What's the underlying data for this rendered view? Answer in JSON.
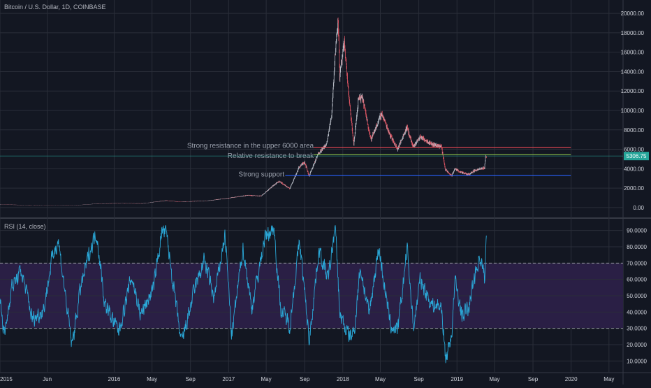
{
  "header": {
    "symbol_title": "Bitcoin / U.S. Dollar, 1D, COINBASE"
  },
  "rsi_panel": {
    "title": "RSI (14, close)"
  },
  "colors": {
    "background": "#131722",
    "grid": "#2a2e39",
    "axis_text": "#d1d4dc",
    "candle_up": "#b7bcc6",
    "candle_down": "#e05563",
    "resistance_upper": "#d64550",
    "resistance_relative": "#8bc34a",
    "support": "#2962ff",
    "rsi_line": "#2aa8d8",
    "rsi_band": "#2a1f45",
    "price_tag": "#26a69a",
    "current_price_line": "#26a69a"
  },
  "chart_data": [
    {
      "type": "candlestick",
      "title": "Bitcoin / U.S. Dollar, 1D, COINBASE",
      "x_range": [
        "2015-01-01",
        "2020-06-15"
      ],
      "y_range": [
        -800,
        20800
      ],
      "y_ticks": [
        "0.00",
        "2000.00",
        "4000.00",
        "6000.00",
        "8000.00",
        "10000.00",
        "12000.00",
        "14000.00",
        "16000.00",
        "18000.00",
        "20000.00"
      ],
      "y_tick_values": [
        0,
        2000,
        4000,
        6000,
        8000,
        10000,
        12000,
        14000,
        16000,
        18000,
        20000
      ],
      "current_price": 5306.75,
      "current_price_label": "5306.75",
      "price_path": [
        [
          "2015-01-01",
          320
        ],
        [
          "2015-03-01",
          270
        ],
        [
          "2015-06-01",
          230
        ],
        [
          "2015-09-01",
          235
        ],
        [
          "2015-11-05",
          390
        ],
        [
          "2016-01-01",
          430
        ],
        [
          "2016-04-01",
          420
        ],
        [
          "2016-06-15",
          720
        ],
        [
          "2016-08-01",
          580
        ],
        [
          "2016-11-01",
          720
        ],
        [
          "2017-01-01",
          980
        ],
        [
          "2017-03-01",
          1250
        ],
        [
          "2017-04-15",
          1200
        ],
        [
          "2017-05-25",
          2300
        ],
        [
          "2017-06-12",
          2700
        ],
        [
          "2017-07-15",
          1950
        ],
        [
          "2017-08-15",
          4200
        ],
        [
          "2017-09-01",
          4700
        ],
        [
          "2017-09-15",
          3250
        ],
        [
          "2017-10-15",
          5600
        ],
        [
          "2017-11-10",
          6500
        ],
        [
          "2017-11-26",
          9500
        ],
        [
          "2017-12-07",
          15500
        ],
        [
          "2017-12-17",
          19650
        ],
        [
          "2017-12-22",
          13500
        ],
        [
          "2018-01-06",
          17000
        ],
        [
          "2018-01-20",
          11500
        ],
        [
          "2018-02-05",
          6500
        ],
        [
          "2018-02-20",
          11200
        ],
        [
          "2018-03-05",
          11300
        ],
        [
          "2018-04-01",
          7000
        ],
        [
          "2018-05-05",
          9700
        ],
        [
          "2018-06-01",
          7500
        ],
        [
          "2018-06-25",
          6000
        ],
        [
          "2018-07-25",
          8300
        ],
        [
          "2018-08-14",
          6200
        ],
        [
          "2018-09-05",
          7300
        ],
        [
          "2018-10-15",
          6500
        ],
        [
          "2018-11-12",
          6300
        ],
        [
          "2018-11-25",
          3900
        ],
        [
          "2018-12-15",
          3250
        ],
        [
          "2018-12-25",
          4000
        ],
        [
          "2019-01-15",
          3600
        ],
        [
          "2019-02-07",
          3400
        ],
        [
          "2019-02-25",
          3800
        ],
        [
          "2019-03-30",
          4100
        ],
        [
          "2019-04-02",
          5200
        ],
        [
          "2019-04-05",
          5306.75
        ]
      ],
      "levels": [
        {
          "name": "upper resistance",
          "y": 6200,
          "x_start": "2017-09-30",
          "x_end": "2019-12-31",
          "color": "#d64550"
        },
        {
          "name": "relative resistance",
          "y": 5450,
          "x_start": "2017-09-30",
          "x_end": "2019-12-31",
          "color": "#8bc34a"
        },
        {
          "name": "support",
          "y": 3300,
          "x_start": "2017-07-01",
          "x_end": "2019-12-31",
          "color": "#2962ff"
        }
      ],
      "annotations": [
        {
          "text": "Strong resistance in the upper 6000 area",
          "x": "2017-09-30",
          "y": 6450
        },
        {
          "text": "Relative resistance to break",
          "x": "2017-09-30",
          "y": 5400
        },
        {
          "text": "Strong support",
          "x": "2017-06-28",
          "y": 3500
        }
      ]
    },
    {
      "type": "line",
      "title": "RSI (14, close)",
      "series_color": "#2aa8d8",
      "y_range": [
        5,
        95
      ],
      "y_ticks": [
        "10.0000",
        "20.0000",
        "30.0000",
        "40.0000",
        "50.0000",
        "60.0000",
        "70.0000",
        "80.0000",
        "90.0000"
      ],
      "y_tick_values": [
        10,
        20,
        30,
        40,
        50,
        60,
        70,
        80,
        90
      ],
      "overbought": 70,
      "oversold": 30,
      "values_path": [
        [
          "2015-01-01",
          47
        ],
        [
          "2015-01-15",
          25
        ],
        [
          "2015-02-05",
          55
        ],
        [
          "2015-03-10",
          65
        ],
        [
          "2015-04-15",
          35
        ],
        [
          "2015-05-20",
          42
        ],
        [
          "2015-06-15",
          72
        ],
        [
          "2015-07-05",
          85
        ],
        [
          "2015-08-18",
          19
        ],
        [
          "2015-09-15",
          55
        ],
        [
          "2015-10-15",
          78
        ],
        [
          "2015-11-05",
          89
        ],
        [
          "2015-12-01",
          45
        ],
        [
          "2016-01-15",
          28
        ],
        [
          "2016-02-25",
          62
        ],
        [
          "2016-03-25",
          38
        ],
        [
          "2016-05-05",
          55
        ],
        [
          "2016-06-01",
          90
        ],
        [
          "2016-06-15",
          88
        ],
        [
          "2016-08-02",
          20
        ],
        [
          "2016-09-15",
          55
        ],
        [
          "2016-10-15",
          72
        ],
        [
          "2016-11-15",
          48
        ],
        [
          "2016-12-20",
          88
        ],
        [
          "2017-01-10",
          25
        ],
        [
          "2017-02-15",
          80
        ],
        [
          "2017-03-15",
          42
        ],
        [
          "2017-04-25",
          85
        ],
        [
          "2017-05-25",
          92
        ],
        [
          "2017-06-15",
          42
        ],
        [
          "2017-07-15",
          32
        ],
        [
          "2017-08-15",
          84
        ],
        [
          "2017-09-15",
          22
        ],
        [
          "2017-10-15",
          78
        ],
        [
          "2017-11-15",
          60
        ],
        [
          "2017-12-07",
          93
        ],
        [
          "2017-12-22",
          38
        ],
        [
          "2018-01-20",
          25
        ],
        [
          "2018-02-05",
          27
        ],
        [
          "2018-02-25",
          68
        ],
        [
          "2018-03-25",
          38
        ],
        [
          "2018-04-25",
          80
        ],
        [
          "2018-06-01",
          32
        ],
        [
          "2018-06-25",
          28
        ],
        [
          "2018-07-25",
          80
        ],
        [
          "2018-08-14",
          30
        ],
        [
          "2018-09-05",
          60
        ],
        [
          "2018-10-10",
          45
        ],
        [
          "2018-11-12",
          43
        ],
        [
          "2018-11-25",
          10
        ],
        [
          "2018-12-15",
          28
        ],
        [
          "2018-12-25",
          60
        ],
        [
          "2019-01-15",
          38
        ],
        [
          "2019-02-07",
          42
        ],
        [
          "2019-02-25",
          62
        ],
        [
          "2019-03-15",
          75
        ],
        [
          "2019-03-30",
          60
        ],
        [
          "2019-04-05",
          91
        ]
      ]
    }
  ],
  "x_axis": {
    "labels": [
      "2015",
      "Jun",
      "2016",
      "May",
      "Sep",
      "2017",
      "May",
      "Sep",
      "2018",
      "May",
      "Sep",
      "2019",
      "May",
      "Sep",
      "2020",
      "May"
    ],
    "dates": [
      "2015-01-01",
      "2015-06-01",
      "2016-01-01",
      "2016-05-01",
      "2016-09-01",
      "2017-01-01",
      "2017-05-01",
      "2017-09-01",
      "2018-01-01",
      "2018-05-01",
      "2018-09-01",
      "2019-01-01",
      "2019-05-01",
      "2019-09-01",
      "2020-01-01",
      "2020-05-01"
    ]
  }
}
